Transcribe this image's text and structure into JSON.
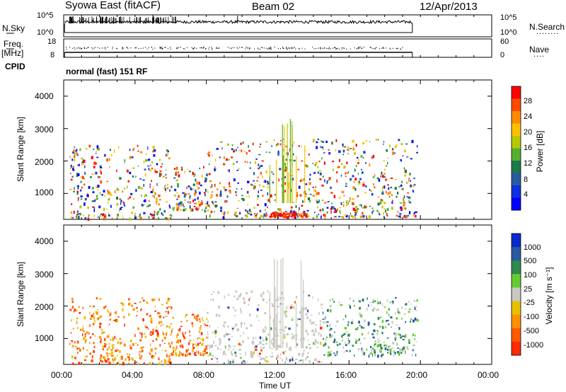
{
  "header": {
    "station": "Syowa East (fitACF)",
    "beam": "Beam 02",
    "date": "12/Apr/2013"
  },
  "strip_nsky": {
    "left_label": "N.Sky",
    "ticks_left": [
      "10^5",
      "10^0"
    ],
    "ticks_right": [
      "10^5",
      "10^0"
    ],
    "right_label": "N.Search",
    "right_label_dots": "........"
  },
  "strip_freq": {
    "left_label_top": "Freq.",
    "left_label_bottom": "[MHz]",
    "ticks_left": [
      "18",
      "8"
    ],
    "ticks_right": [
      "60",
      "0"
    ],
    "right_label": "Nave",
    "right_label_dots": "...."
  },
  "cpid": {
    "label": "CPID",
    "value": "normal (fast) 151 RF"
  },
  "chart_data": [
    {
      "type": "heatmap",
      "title": "",
      "xlabel": "",
      "ylabel": "Slant Range [km]",
      "x_range_hours": [
        0,
        24
      ],
      "y_range_km": [
        200,
        4500
      ],
      "yticks": [
        1000,
        2000,
        3000,
        4000
      ],
      "colorbar": {
        "label": "Power [dB]",
        "ticks": [
          "28",
          "24",
          "20",
          "16",
          "12",
          "8",
          "4"
        ],
        "colors": [
          "#ff0000",
          "#ff4a00",
          "#ff8a00",
          "#ffc000",
          "#b8c800",
          "#55b030",
          "#1a7a4a",
          "#2a5aa0",
          "#1030e0",
          "#0000ff"
        ]
      },
      "echo_regions": [
        {
          "t_start": 0.3,
          "t_end": 6.0,
          "r_min": 250,
          "r_max": 2500,
          "level": "mixed"
        },
        {
          "t_start": 6.0,
          "t_end": 8.0,
          "r_min": 500,
          "r_max": 1900,
          "level": "mixed"
        },
        {
          "t_start": 8.0,
          "t_end": 19.8,
          "r_min": 300,
          "r_max": 2700,
          "level": "mixed"
        },
        {
          "t_start": 11.5,
          "t_end": 13.5,
          "r_min": 300,
          "r_max": 450,
          "level": "high"
        }
      ]
    },
    {
      "type": "heatmap",
      "title": "",
      "xlabel": "Time UT",
      "ylabel": "Slant Range [km]",
      "x_range_hours": [
        0,
        24
      ],
      "xticks": [
        "00:00",
        "04:00",
        "08:00",
        "12:00",
        "16:00",
        "20:00",
        "00:00"
      ],
      "y_range_km": [
        200,
        4500
      ],
      "yticks": [
        1000,
        2000,
        3000,
        4000
      ],
      "colorbar": {
        "label": "Velocity [m s⁻¹]",
        "ticks": [
          "1000",
          "500",
          "100",
          "25",
          "-25",
          "-100",
          "-500",
          "-1000"
        ],
        "colors": [
          "#0a2ad0",
          "#2a5aa0",
          "#2f8a50",
          "#66cc33",
          "#c8c8c0",
          "#e8c000",
          "#ff9000",
          "#ff5a00",
          "#ff2a00"
        ]
      },
      "echo_regions": [
        {
          "t_start": 0.3,
          "t_end": 6.0,
          "r_min": 250,
          "r_max": 2300,
          "level": "negative"
        },
        {
          "t_start": 6.0,
          "t_end": 8.0,
          "r_min": 500,
          "r_max": 1800,
          "level": "negative"
        },
        {
          "t_start": 8.0,
          "t_end": 14.5,
          "r_min": 300,
          "r_max": 2500,
          "level": "near-zero"
        },
        {
          "t_start": 14.5,
          "t_end": 19.8,
          "r_min": 500,
          "r_max": 2300,
          "level": "positive"
        }
      ]
    }
  ]
}
